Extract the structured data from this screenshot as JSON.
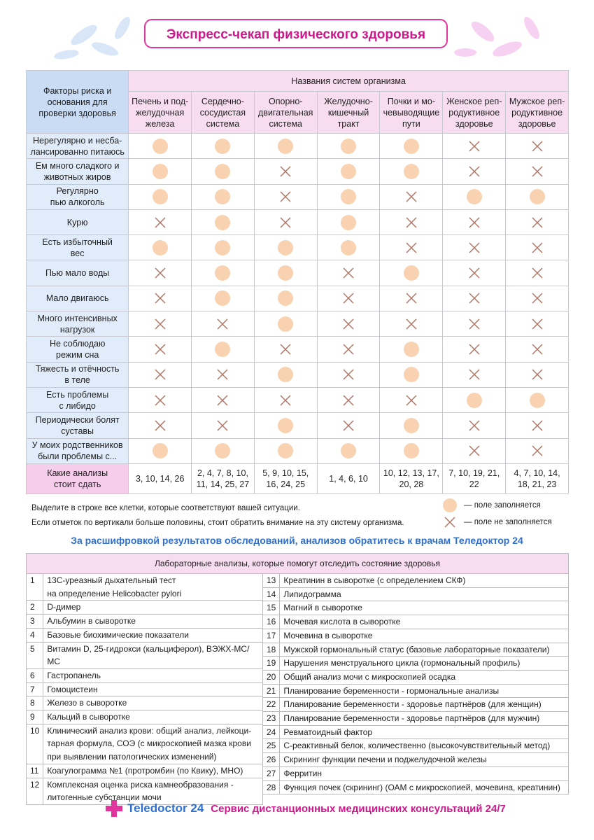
{
  "title": "Экспресс-чекап физического здоровья",
  "matrix": {
    "corner": "Факторы риска и\nоснования для\nпроверки здоровья",
    "group": "Названия систем организма",
    "columns": [
      "Печень и под-\nжелудочная\nжелеза",
      "Сердечно-\nсосудистая\nсистема",
      "Опорно-\nдвигательная\nсистема",
      "Желудочно-\nкишечный\nтракт",
      "Почки и мо-\nчевыводящие\nпути",
      "Женское реп-\nродуктивное\nздоровье",
      "Мужское реп-\nродуктивное\nздоровье"
    ],
    "rows": [
      {
        "label": "Нерегулярно и несба-\nлансированно питаюсь",
        "cells": [
          true,
          true,
          true,
          true,
          true,
          false,
          false
        ]
      },
      {
        "label": "Ем много сладкого и\nживотных жиров",
        "cells": [
          true,
          true,
          false,
          true,
          true,
          false,
          false
        ]
      },
      {
        "label": "Регулярно\nпью алкоголь",
        "cells": [
          true,
          true,
          false,
          true,
          false,
          true,
          true
        ]
      },
      {
        "label": "Курю",
        "cells": [
          false,
          true,
          false,
          true,
          false,
          false,
          false
        ]
      },
      {
        "label": "Есть избыточный\nвес",
        "cells": [
          true,
          true,
          true,
          true,
          false,
          false,
          false
        ]
      },
      {
        "label": "Пью мало воды",
        "cells": [
          false,
          true,
          true,
          false,
          true,
          false,
          false
        ]
      },
      {
        "label": "Мало двигаюсь",
        "cells": [
          false,
          true,
          true,
          false,
          false,
          false,
          false
        ]
      },
      {
        "label": "Много интенсивных\nнагрузок",
        "cells": [
          false,
          false,
          true,
          false,
          false,
          false,
          false
        ]
      },
      {
        "label": "Не соблюдаю\nрежим сна",
        "cells": [
          false,
          true,
          false,
          false,
          true,
          false,
          false
        ]
      },
      {
        "label": "Тяжесть и отёчность\nв теле",
        "cells": [
          false,
          false,
          true,
          false,
          true,
          false,
          false
        ]
      },
      {
        "label": "Есть проблемы\nс либидо",
        "cells": [
          false,
          false,
          false,
          false,
          false,
          true,
          true
        ]
      },
      {
        "label": "Периодически болят\nсуставы",
        "cells": [
          false,
          false,
          true,
          false,
          true,
          false,
          false
        ]
      },
      {
        "label": "У моих родственников\nбыли проблемы с...",
        "cells": [
          true,
          true,
          true,
          true,
          true,
          false,
          false
        ]
      }
    ],
    "analyses_label": "Какие анализы\nстоит сдать",
    "analyses": [
      "3, 10, 14, 26",
      "2, 4, 7, 8, 10,\n11, 14, 25, 27",
      "5, 9, 10, 15,\n16, 24, 25",
      "1, 4, 6, 10",
      "10, 12, 13, 17,\n20, 28",
      "7, 10, 19, 21, 22",
      "4, 7, 10, 14,\n18, 21, 23"
    ]
  },
  "notes": [
    "Выделите в строке все клетки, которые соответствуют вашей ситуации.",
    "Если отметок по вертикали больше половины, стоит обратить внимание на эту систему организма."
  ],
  "legend": {
    "filled": "— поле заполняется",
    "empty": "— поле не заполняется"
  },
  "advice": "За расшифровкой результатов обследований, анализов обратитесь к врачам Теледоктор 24",
  "labs": {
    "title": "Лабораторные анализы, которые помогут отследить состояние здоровья",
    "left": [
      {
        "num": "1",
        "text": "13С-уреазный дыхательный тест\nна определение Helicobacter pylori"
      },
      {
        "num": "2",
        "text": "D-димер"
      },
      {
        "num": "3",
        "text": "Альбумин в сыворотке"
      },
      {
        "num": "4",
        "text": "Базовые биохимические показатели"
      },
      {
        "num": "5",
        "text": "Витамин D, 25-гидрокси (кальциферол), ВЭЖХ-МС/МС"
      },
      {
        "num": "6",
        "text": "Гастропанель"
      },
      {
        "num": "7",
        "text": "Гомоцистеин"
      },
      {
        "num": "8",
        "text": "Железо в сыворотке"
      },
      {
        "num": "9",
        "text": "Кальций в сыворотке"
      },
      {
        "num": "10",
        "text": "Клинический анализ крови: общий анализ, лейкоци-\nтарная формула, СОЭ (с микроскопией мазка крови\nпри выявлении патологических изменений)"
      },
      {
        "num": "11",
        "text": "Коагулограмма №1 (протромбин (по Квику), МНО)"
      },
      {
        "num": "12",
        "text": "Комплексная оценка риска камнеобразования -\nлитогенные субстанции мочи"
      }
    ],
    "right": [
      {
        "num": "13",
        "text": "Креатинин в сыворотке (с определением СКФ)"
      },
      {
        "num": "14",
        "text": "Липидограмма"
      },
      {
        "num": "15",
        "text": "Магний в сыворотке"
      },
      {
        "num": "16",
        "text": "Мочевая кислота в сыворотке"
      },
      {
        "num": "17",
        "text": "Мочевина в сыворотке"
      },
      {
        "num": "18",
        "text": "Мужской гормональный статус (базовые лабораторные показатели)"
      },
      {
        "num": "19",
        "text": "Нарушения менструального цикла (гормональный профиль)"
      },
      {
        "num": "20",
        "text": "Общий анализ мочи с микроскопией осадка"
      },
      {
        "num": "21",
        "text": "Планирование беременности - гормональные анализы"
      },
      {
        "num": "22",
        "text": "Планирование беременности - здоровье партнёров (для женщин)"
      },
      {
        "num": "23",
        "text": "Планирование беременности - здоровье партнёров (для мужчин)"
      },
      {
        "num": "24",
        "text": "Ревматоидный фактор"
      },
      {
        "num": "25",
        "text": "С-реактивный белок, количественно (высокочувствительный метод)"
      },
      {
        "num": "26",
        "text": "Скрининг функции печени и поджелудочной железы"
      },
      {
        "num": "27",
        "text": "Ферритин"
      },
      {
        "num": "28",
        "text": "Функция почек (скрининг) (ОАМ с микроскопией, мочевина, креатинин)"
      }
    ]
  },
  "footer": {
    "brand": "Teledoctor 24",
    "tagline": "Сервис дистанционных медицинских консультаций 24/7"
  }
}
